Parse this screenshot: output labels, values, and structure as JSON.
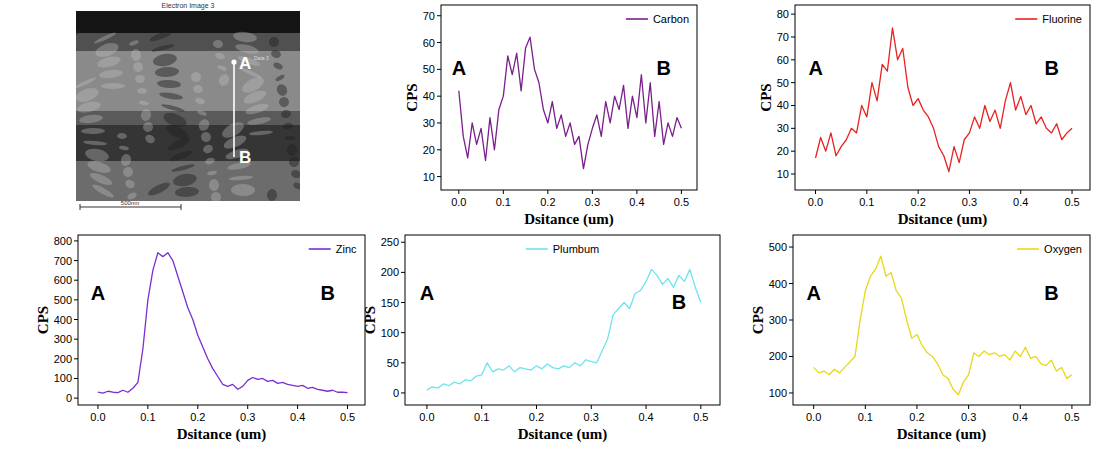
{
  "image": {
    "title": "Electron Image 3",
    "label_data": "Data 3",
    "points": [
      "A",
      "B"
    ],
    "scale_bar": "500nm"
  },
  "chart_data": [
    {
      "type": "line",
      "x_label": "Dsitance (um)",
      "y_label": "CPS",
      "annotations": [
        "A",
        "B"
      ],
      "legend": "upper right",
      "grid": false,
      "x": [
        0,
        0.01,
        0.02,
        0.03,
        0.04,
        0.05,
        0.06,
        0.07,
        0.08,
        0.09,
        0.1,
        0.11,
        0.12,
        0.13,
        0.14,
        0.15,
        0.16,
        0.17,
        0.18,
        0.19,
        0.2,
        0.21,
        0.22,
        0.23,
        0.24,
        0.25,
        0.26,
        0.27,
        0.28,
        0.29,
        0.3,
        0.31,
        0.32,
        0.33,
        0.34,
        0.35,
        0.36,
        0.37,
        0.38,
        0.39,
        0.4,
        0.41,
        0.42,
        0.43,
        0.44,
        0.45,
        0.46,
        0.47,
        0.48,
        0.49,
        0.5
      ],
      "xlim": [
        -0.04,
        0.535
      ],
      "xticks": [
        {
          "value": 0,
          "label": "0.0"
        },
        0.1,
        0.2,
        0.3,
        0.4,
        0.5
      ],
      "ylim": [
        5,
        74
      ],
      "yticks": [
        10,
        20,
        30,
        40,
        50,
        60,
        70
      ],
      "series": [
        {
          "name": "Carbon",
          "color": "#7b1f8c",
          "values": [
            42,
            25,
            17,
            30,
            22,
            28,
            16,
            32,
            20,
            35,
            40,
            55,
            48,
            56,
            42,
            58,
            62,
            50,
            45,
            35,
            30,
            38,
            28,
            33,
            25,
            30,
            22,
            25,
            13,
            22,
            28,
            33,
            25,
            38,
            30,
            40,
            35,
            44,
            28,
            40,
            32,
            48,
            30,
            45,
            25,
            38,
            22,
            30,
            25,
            32,
            28
          ]
        }
      ]
    },
    {
      "type": "line",
      "x_label": "Dsitance (um)",
      "y_label": "CPS",
      "annotations": [
        "A",
        "B"
      ],
      "legend": "upper right",
      "grid": false,
      "x": [
        0,
        0.01,
        0.02,
        0.03,
        0.04,
        0.05,
        0.06,
        0.07,
        0.08,
        0.09,
        0.1,
        0.11,
        0.12,
        0.13,
        0.14,
        0.15,
        0.16,
        0.17,
        0.18,
        0.19,
        0.2,
        0.21,
        0.22,
        0.23,
        0.24,
        0.25,
        0.26,
        0.27,
        0.28,
        0.29,
        0.3,
        0.31,
        0.32,
        0.33,
        0.34,
        0.35,
        0.36,
        0.37,
        0.38,
        0.39,
        0.4,
        0.41,
        0.42,
        0.43,
        0.44,
        0.45,
        0.46,
        0.47,
        0.48,
        0.49,
        0.5
      ],
      "xlim": [
        -0.04,
        0.535
      ],
      "xticks": [
        {
          "value": 0,
          "label": "0.0"
        },
        0.1,
        0.2,
        0.3,
        0.4,
        0.5
      ],
      "ylim": [
        3,
        84
      ],
      "yticks": [
        10,
        20,
        30,
        40,
        50,
        60,
        70,
        80
      ],
      "series": [
        {
          "name": "Fluorine",
          "color": "#e8231f",
          "values": [
            17,
            26,
            20,
            28,
            18,
            22,
            25,
            30,
            28,
            40,
            35,
            50,
            42,
            58,
            55,
            74,
            60,
            65,
            48,
            40,
            43,
            38,
            35,
            30,
            22,
            18,
            11,
            22,
            15,
            25,
            28,
            35,
            30,
            40,
            33,
            38,
            30,
            42,
            50,
            38,
            44,
            36,
            40,
            32,
            35,
            30,
            28,
            32,
            25,
            28,
            30
          ]
        }
      ]
    },
    {
      "type": "line",
      "x_label": "Dsitance (um)",
      "y_label": "CPS",
      "annotations": [
        "A",
        "B"
      ],
      "legend": "upper right",
      "grid": false,
      "x": [
        0,
        0.01,
        0.02,
        0.03,
        0.04,
        0.05,
        0.06,
        0.07,
        0.08,
        0.09,
        0.1,
        0.11,
        0.12,
        0.13,
        0.14,
        0.15,
        0.16,
        0.17,
        0.18,
        0.19,
        0.2,
        0.21,
        0.22,
        0.23,
        0.24,
        0.25,
        0.26,
        0.27,
        0.28,
        0.29,
        0.3,
        0.31,
        0.32,
        0.33,
        0.34,
        0.35,
        0.36,
        0.37,
        0.38,
        0.39,
        0.4,
        0.41,
        0.42,
        0.43,
        0.44,
        0.45,
        0.46,
        0.47,
        0.48,
        0.49,
        0.5
      ],
      "xlim": [
        -0.04,
        0.535
      ],
      "xticks": [
        {
          "value": 0,
          "label": "0.0"
        },
        0.1,
        0.2,
        0.3,
        0.4,
        0.5
      ],
      "ylim": [
        -35,
        830
      ],
      "yticks": [
        0,
        100,
        200,
        300,
        400,
        500,
        600,
        700,
        800
      ],
      "series": [
        {
          "name": "Zinc",
          "color": "#7a2fd0",
          "values": [
            30,
            25,
            35,
            30,
            28,
            40,
            30,
            50,
            80,
            250,
            500,
            650,
            740,
            720,
            740,
            700,
            620,
            540,
            460,
            400,
            320,
            260,
            200,
            150,
            110,
            70,
            60,
            70,
            45,
            60,
            90,
            105,
            95,
            100,
            85,
            90,
            75,
            80,
            70,
            65,
            60,
            65,
            50,
            55,
            45,
            40,
            35,
            40,
            30,
            30,
            28
          ]
        }
      ]
    },
    {
      "type": "line",
      "x_label": "Dsitance (um)",
      "y_label": "CPS",
      "annotations": [
        "A",
        "B"
      ],
      "legend": "upper center",
      "grid": false,
      "x": [
        0,
        0.01,
        0.02,
        0.03,
        0.04,
        0.05,
        0.06,
        0.07,
        0.08,
        0.09,
        0.1,
        0.11,
        0.12,
        0.13,
        0.14,
        0.15,
        0.16,
        0.17,
        0.18,
        0.19,
        0.2,
        0.21,
        0.22,
        0.23,
        0.24,
        0.25,
        0.26,
        0.27,
        0.28,
        0.29,
        0.3,
        0.31,
        0.32,
        0.33,
        0.34,
        0.35,
        0.36,
        0.37,
        0.38,
        0.39,
        0.4,
        0.41,
        0.42,
        0.43,
        0.44,
        0.45,
        0.46,
        0.47,
        0.48,
        0.49,
        0.5
      ],
      "xlim": [
        -0.04,
        0.535
      ],
      "xticks": [
        {
          "value": 0,
          "label": "0.0"
        },
        0.1,
        0.2,
        0.3,
        0.4,
        0.5
      ],
      "ylim": [
        -20,
        262
      ],
      "yticks": [
        0,
        50,
        100,
        150,
        200,
        250
      ],
      "series": [
        {
          "name": "Plumbum",
          "color": "#6fe3ee",
          "values": [
            5,
            10,
            8,
            15,
            12,
            18,
            15,
            22,
            20,
            28,
            30,
            50,
            35,
            40,
            38,
            45,
            35,
            42,
            40,
            38,
            45,
            40,
            48,
            42,
            40,
            45,
            42,
            50,
            45,
            55,
            52,
            50,
            70,
            90,
            130,
            140,
            150,
            140,
            165,
            170,
            185,
            205,
            195,
            180,
            190,
            175,
            195,
            185,
            205,
            175,
            150
          ]
        }
      ]
    },
    {
      "type": "line",
      "x_label": "Dsitance (um)",
      "y_label": "CPS",
      "annotations": [
        "A",
        "B"
      ],
      "legend": "upper right",
      "grid": false,
      "x": [
        0,
        0.01,
        0.02,
        0.03,
        0.04,
        0.05,
        0.06,
        0.07,
        0.08,
        0.09,
        0.1,
        0.11,
        0.12,
        0.13,
        0.14,
        0.15,
        0.16,
        0.17,
        0.18,
        0.19,
        0.2,
        0.21,
        0.22,
        0.23,
        0.24,
        0.25,
        0.26,
        0.27,
        0.28,
        0.29,
        0.3,
        0.31,
        0.32,
        0.33,
        0.34,
        0.35,
        0.36,
        0.37,
        0.38,
        0.39,
        0.4,
        0.41,
        0.42,
        0.43,
        0.44,
        0.45,
        0.46,
        0.47,
        0.48,
        0.49,
        0.5
      ],
      "xlim": [
        -0.04,
        0.535
      ],
      "xticks": [
        {
          "value": 0,
          "label": "0.0"
        },
        0.1,
        0.2,
        0.3,
        0.4,
        0.5
      ],
      "ylim": [
        67,
        533
      ],
      "yticks": [
        100,
        200,
        300,
        400,
        500
      ],
      "series": [
        {
          "name": "Oxygen",
          "color": "#e8d81a",
          "values": [
            170,
            155,
            160,
            150,
            165,
            155,
            170,
            185,
            200,
            300,
            380,
            420,
            440,
            475,
            420,
            430,
            380,
            360,
            300,
            250,
            260,
            230,
            210,
            200,
            180,
            150,
            140,
            110,
            95,
            130,
            150,
            210,
            200,
            215,
            205,
            210,
            200,
            205,
            190,
            215,
            200,
            225,
            195,
            200,
            180,
            175,
            190,
            160,
            170,
            140,
            150
          ]
        }
      ]
    }
  ]
}
